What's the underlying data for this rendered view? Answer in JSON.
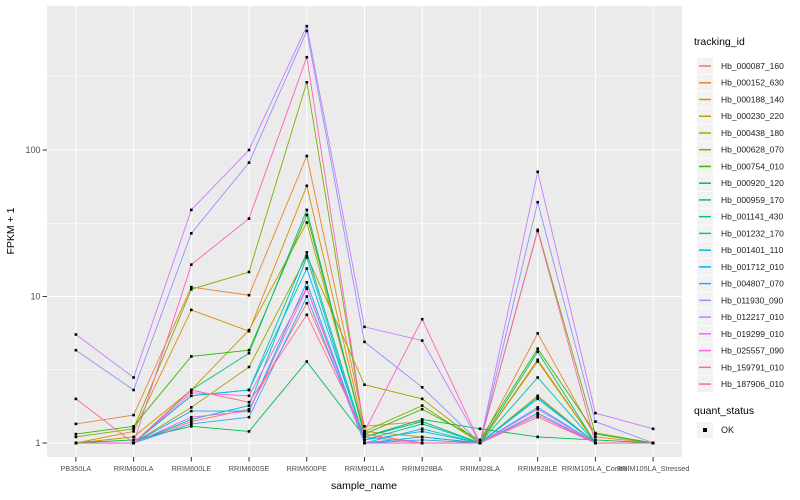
{
  "page": {
    "background": "#FFFFFF"
  },
  "chart_data": {
    "type": "line",
    "title": "",
    "xlabel": "sample_name",
    "ylabel": "FPKM + 1",
    "y_scale": "log10",
    "ylim": [
      0.8,
      960
    ],
    "y_tick_values": [
      1,
      10,
      100
    ],
    "y_tick_labels": [
      "1",
      "10",
      "100"
    ],
    "y_minor_values": [
      3.162,
      31.62,
      316.2
    ],
    "panel_bg": "#EBEBEB",
    "grid_color": "#FFFFFF",
    "tick_color": "#333333",
    "axis_text_color": "#4D4D4D",
    "marker_color": "#000000",
    "categories": [
      "PB350LA",
      "RRIM600LA",
      "RRIM600LE",
      "RRIM600SE",
      "RRIM600PE",
      "RRIM901LA",
      "RRIM928BA",
      "RRIM928LA",
      "RRIM928LE",
      "RRIM105LA_Control",
      "RRIM105LA_Stressed"
    ],
    "series": [
      {
        "name": "Hb_000087_160",
        "color": "#F8766D",
        "values": [
          1.0,
          1.0,
          1.4,
          1.7,
          9.0,
          1.1,
          1.0,
          1.0,
          1.6,
          1.0,
          1.0
        ]
      },
      {
        "name": "Hb_000152_630",
        "color": "#EA8331",
        "values": [
          1.35,
          1.55,
          11.6,
          10.2,
          91,
          1.3,
          1.4,
          1.0,
          5.6,
          1.1,
          1.0
        ]
      },
      {
        "name": "Hb_000188_140",
        "color": "#D89000",
        "values": [
          1.0,
          1.2,
          8.1,
          5.8,
          57,
          1.2,
          1.1,
          1.0,
          3.7,
          1.0,
          1.0
        ]
      },
      {
        "name": "Hb_000230_220",
        "color": "#C09B00",
        "values": [
          1.0,
          1.1,
          2.3,
          5.9,
          32,
          1.15,
          1.0,
          1.0,
          3.6,
          1.0,
          1.0
        ]
      },
      {
        "name": "Hb_000438_180",
        "color": "#A3A500",
        "values": [
          1.0,
          1.0,
          1.75,
          3.3,
          19,
          2.5,
          2.0,
          1.0,
          2.1,
          1.0,
          1.0
        ]
      },
      {
        "name": "Hb_000628_070",
        "color": "#7CAE00",
        "values": [
          1.1,
          1.25,
          11.2,
          14.7,
          290,
          1.2,
          1.8,
          1.0,
          28.5,
          1.15,
          1.0
        ]
      },
      {
        "name": "Hb_000754_010",
        "color": "#39B600",
        "values": [
          1.15,
          1.3,
          3.9,
          4.3,
          36,
          1.15,
          1.7,
          1.05,
          4.4,
          1.17,
          1.0
        ]
      },
      {
        "name": "Hb_000920_120",
        "color": "#00BB4E",
        "values": [
          1.0,
          1.05,
          1.3,
          1.2,
          3.6,
          1.1,
          1.45,
          1.25,
          1.1,
          1.05,
          1.0
        ]
      },
      {
        "name": "Hb_000959_170",
        "color": "#00BF7D",
        "values": [
          1.0,
          1.0,
          2.3,
          4.1,
          39,
          1.1,
          1.4,
          1.0,
          4.2,
          1.0,
          1.0
        ]
      },
      {
        "name": "Hb_001141_430",
        "color": "#00C1A3",
        "values": [
          1.0,
          1.0,
          2.1,
          2.3,
          20,
          1.05,
          1.35,
          1.0,
          2.8,
          1.0,
          1.0
        ]
      },
      {
        "name": "Hb_001232_170",
        "color": "#00BFC4",
        "values": [
          1.0,
          1.0,
          1.45,
          1.8,
          18.5,
          1.0,
          1.25,
          1.0,
          2.05,
          1.0,
          1.0
        ]
      },
      {
        "name": "Hb_001401_110",
        "color": "#00BAE0",
        "values": [
          1.0,
          1.0,
          2.1,
          2.3,
          15.5,
          1.05,
          1.2,
          1.0,
          2.0,
          1.0,
          1.0
        ]
      },
      {
        "name": "Hb_001712_010",
        "color": "#00B0F6",
        "values": [
          1.0,
          1.0,
          1.65,
          1.65,
          12.5,
          1.0,
          1.1,
          1.0,
          1.75,
          1.0,
          1.0
        ]
      },
      {
        "name": "Hb_004807_070",
        "color": "#35A2FF",
        "values": [
          1.0,
          1.0,
          1.35,
          1.5,
          10,
          1.0,
          1.05,
          1.0,
          1.6,
          1.0,
          1.0
        ]
      },
      {
        "name": "Hb_011930_090",
        "color": "#9590FF",
        "values": [
          4.3,
          2.3,
          27,
          82,
          650,
          4.9,
          2.4,
          1.0,
          44,
          1.4,
          1.0
        ]
      },
      {
        "name": "Hb_012217_010",
        "color": "#C77CFF",
        "values": [
          5.5,
          2.8,
          39,
          100,
          700,
          6.2,
          5.0,
          1.0,
          71,
          1.6,
          1.25
        ]
      },
      {
        "name": "Hb_019299_010",
        "color": "#E76BF3",
        "values": [
          1.0,
          1.0,
          1.5,
          1.65,
          11.3,
          1.0,
          1.0,
          1.0,
          1.7,
          1.0,
          1.0
        ]
      },
      {
        "name": "Hb_025557_090",
        "color": "#FA62DB",
        "values": [
          1.0,
          1.0,
          2.2,
          2.1,
          11.5,
          1.0,
          1.0,
          1.0,
          1.55,
          1.0,
          1.0
        ]
      },
      {
        "name": "Hb_159791_010",
        "color": "#FF62BC",
        "values": [
          1.0,
          1.0,
          16.5,
          34,
          430,
          1.2,
          7.0,
          1.0,
          28,
          1.0,
          1.0
        ]
      },
      {
        "name": "Hb_187906_010",
        "color": "#FF6A98",
        "values": [
          2.0,
          1.0,
          2.3,
          1.9,
          7.5,
          1.15,
          1.0,
          1.0,
          1.5,
          1.0,
          1.0
        ]
      }
    ],
    "legend_position": "right",
    "grid": "on"
  },
  "legend": {
    "tracking_title": "tracking_id",
    "quant_title": "quant_status",
    "quant_items": [
      {
        "label": "OK",
        "marker": "black-square"
      }
    ],
    "key_bg": "#F2F2F2"
  }
}
